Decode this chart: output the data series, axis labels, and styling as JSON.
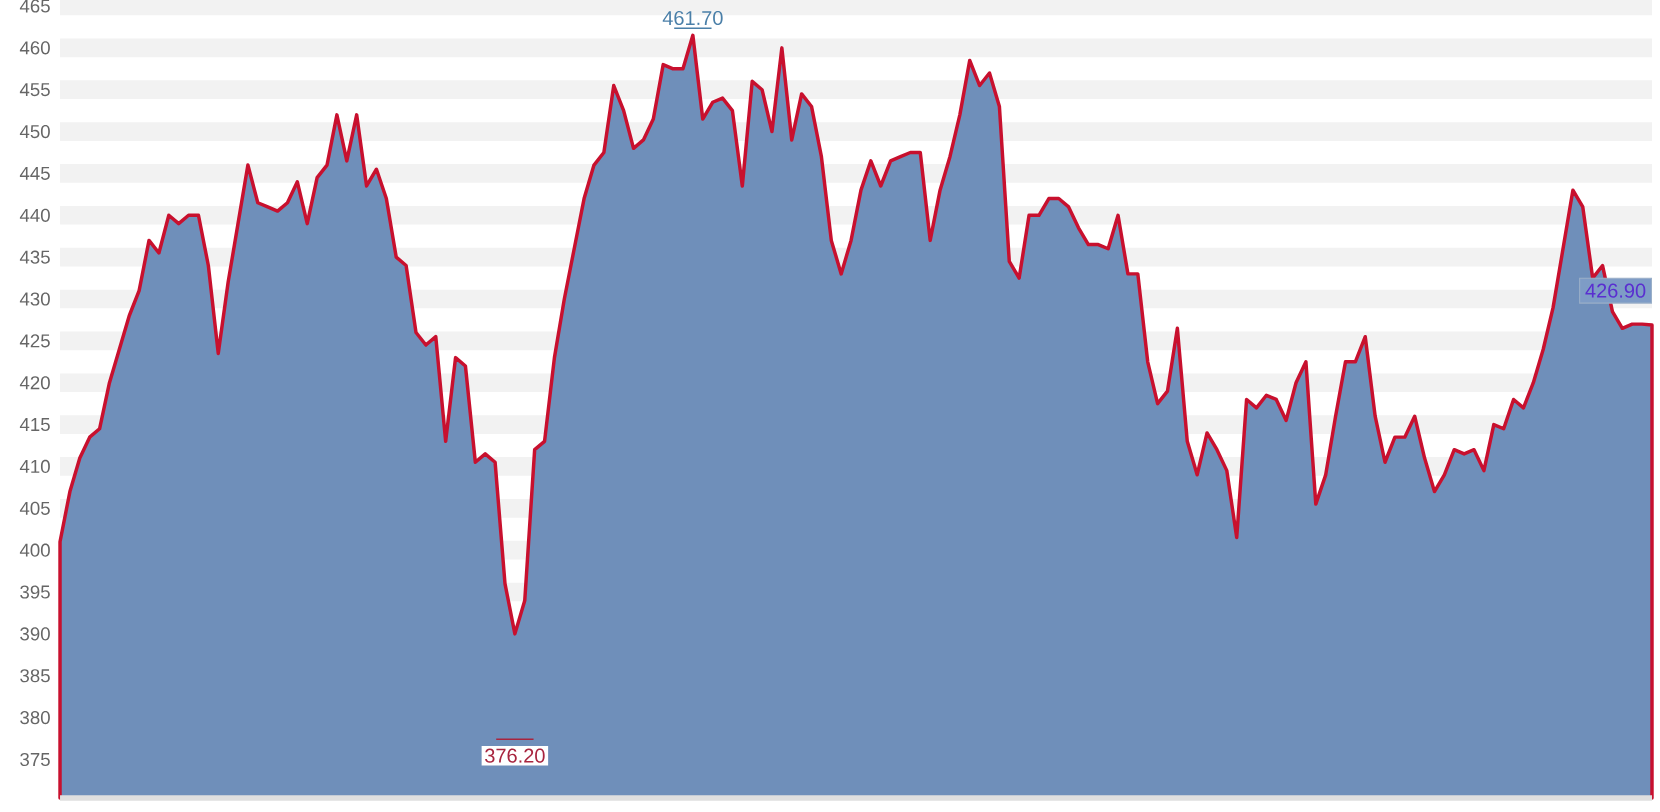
{
  "chart_data": {
    "type": "area",
    "categories": [
      null,
      null,
      null,
      null,
      null,
      null,
      null,
      null,
      null,
      null,
      null,
      null,
      null,
      null,
      null,
      null,
      null,
      null,
      null,
      null,
      null,
      null,
      null,
      null,
      null,
      null,
      null,
      null,
      null,
      null,
      null,
      null,
      null,
      null,
      null,
      null,
      null,
      null,
      null,
      null,
      null,
      null,
      null,
      null,
      null,
      null,
      null,
      null,
      null,
      null,
      null,
      null,
      null,
      null,
      null,
      null,
      null,
      null,
      null,
      null,
      null,
      null,
      null,
      null,
      null,
      null,
      null,
      null,
      null,
      null,
      null,
      null,
      null,
      null,
      null,
      null,
      null,
      null,
      null,
      null,
      null,
      null,
      null,
      null,
      null,
      null,
      null,
      null,
      null,
      null,
      null,
      null,
      null,
      null,
      null,
      null,
      null,
      null,
      null,
      null,
      null,
      null,
      null,
      null,
      null,
      null,
      null,
      null,
      null,
      null,
      null,
      null,
      null,
      null,
      null,
      null,
      null,
      null,
      null,
      null,
      null,
      null,
      null,
      null,
      null,
      null,
      null,
      null,
      null,
      null,
      null,
      null,
      null,
      null,
      null,
      null,
      null,
      null,
      null,
      null,
      null,
      null,
      null,
      null,
      null,
      null,
      null,
      null,
      null,
      null,
      null,
      null,
      null,
      null,
      null,
      null,
      null,
      null,
      null,
      null,
      null,
      null
    ],
    "series": [
      {
        "color": "#6f8fba",
        "values": [
          401,
          407,
          411,
          413.5,
          414.5,
          420,
          424,
          428,
          431,
          437,
          435.5,
          440,
          439,
          440,
          440,
          434,
          423.5,
          432,
          439,
          446,
          441.5,
          441,
          440.5,
          441.5,
          444,
          439,
          444.5,
          446,
          452,
          446.5,
          452,
          443.5,
          445.5,
          442,
          435,
          434,
          426,
          424.5,
          425.5,
          413,
          423,
          422,
          410.5,
          411.5,
          410.5,
          396,
          390,
          394,
          412,
          413,
          423,
          430,
          436,
          442,
          446,
          447.5,
          455.5,
          452.5,
          448,
          449,
          451.5,
          458,
          457.5,
          457.5,
          461.5,
          451.5,
          453.5,
          454,
          452.5,
          443.5,
          456,
          455,
          450,
          460,
          449,
          454.5,
          453,
          447,
          437,
          433,
          437,
          443,
          446.5,
          443.5,
          446.5,
          447,
          447.5,
          447.5,
          437,
          443,
          447,
          452,
          458.5,
          455.5,
          457,
          453,
          434.5,
          432.5,
          440,
          440,
          442,
          442,
          441,
          438.5,
          436.5,
          436.5,
          436,
          440,
          433,
          433,
          422.5,
          417.5,
          419,
          426.5,
          413,
          409,
          414,
          412,
          409.5,
          401.5,
          418,
          417,
          418.5,
          418,
          415.5,
          420,
          422.5,
          405.5,
          409,
          416,
          422.5,
          422.5,
          425.5,
          416,
          410.5,
          413.5,
          413.5,
          416,
          411,
          407,
          409,
          412,
          411.5,
          412,
          409.5,
          415,
          414.5,
          418,
          417,
          420,
          424,
          429,
          436,
          443,
          441,
          432.5,
          434,
          428.5,
          426.5,
          427,
          427,
          426.9
        ]
      }
    ],
    "ylim": [
      370.4,
      465
    ],
    "yticks": [
      375,
      380,
      385,
      390,
      395,
      400,
      405,
      410,
      415,
      420,
      425,
      430,
      435,
      440,
      445,
      450,
      455,
      460,
      465
    ],
    "grid": "y",
    "tick_labels": "y",
    "annotations": [
      {
        "text": "461.70",
        "y": 461.7
      },
      "376.20",
      {
        "text": "426.90",
        "y": 426.9
      }
    ]
  }
}
